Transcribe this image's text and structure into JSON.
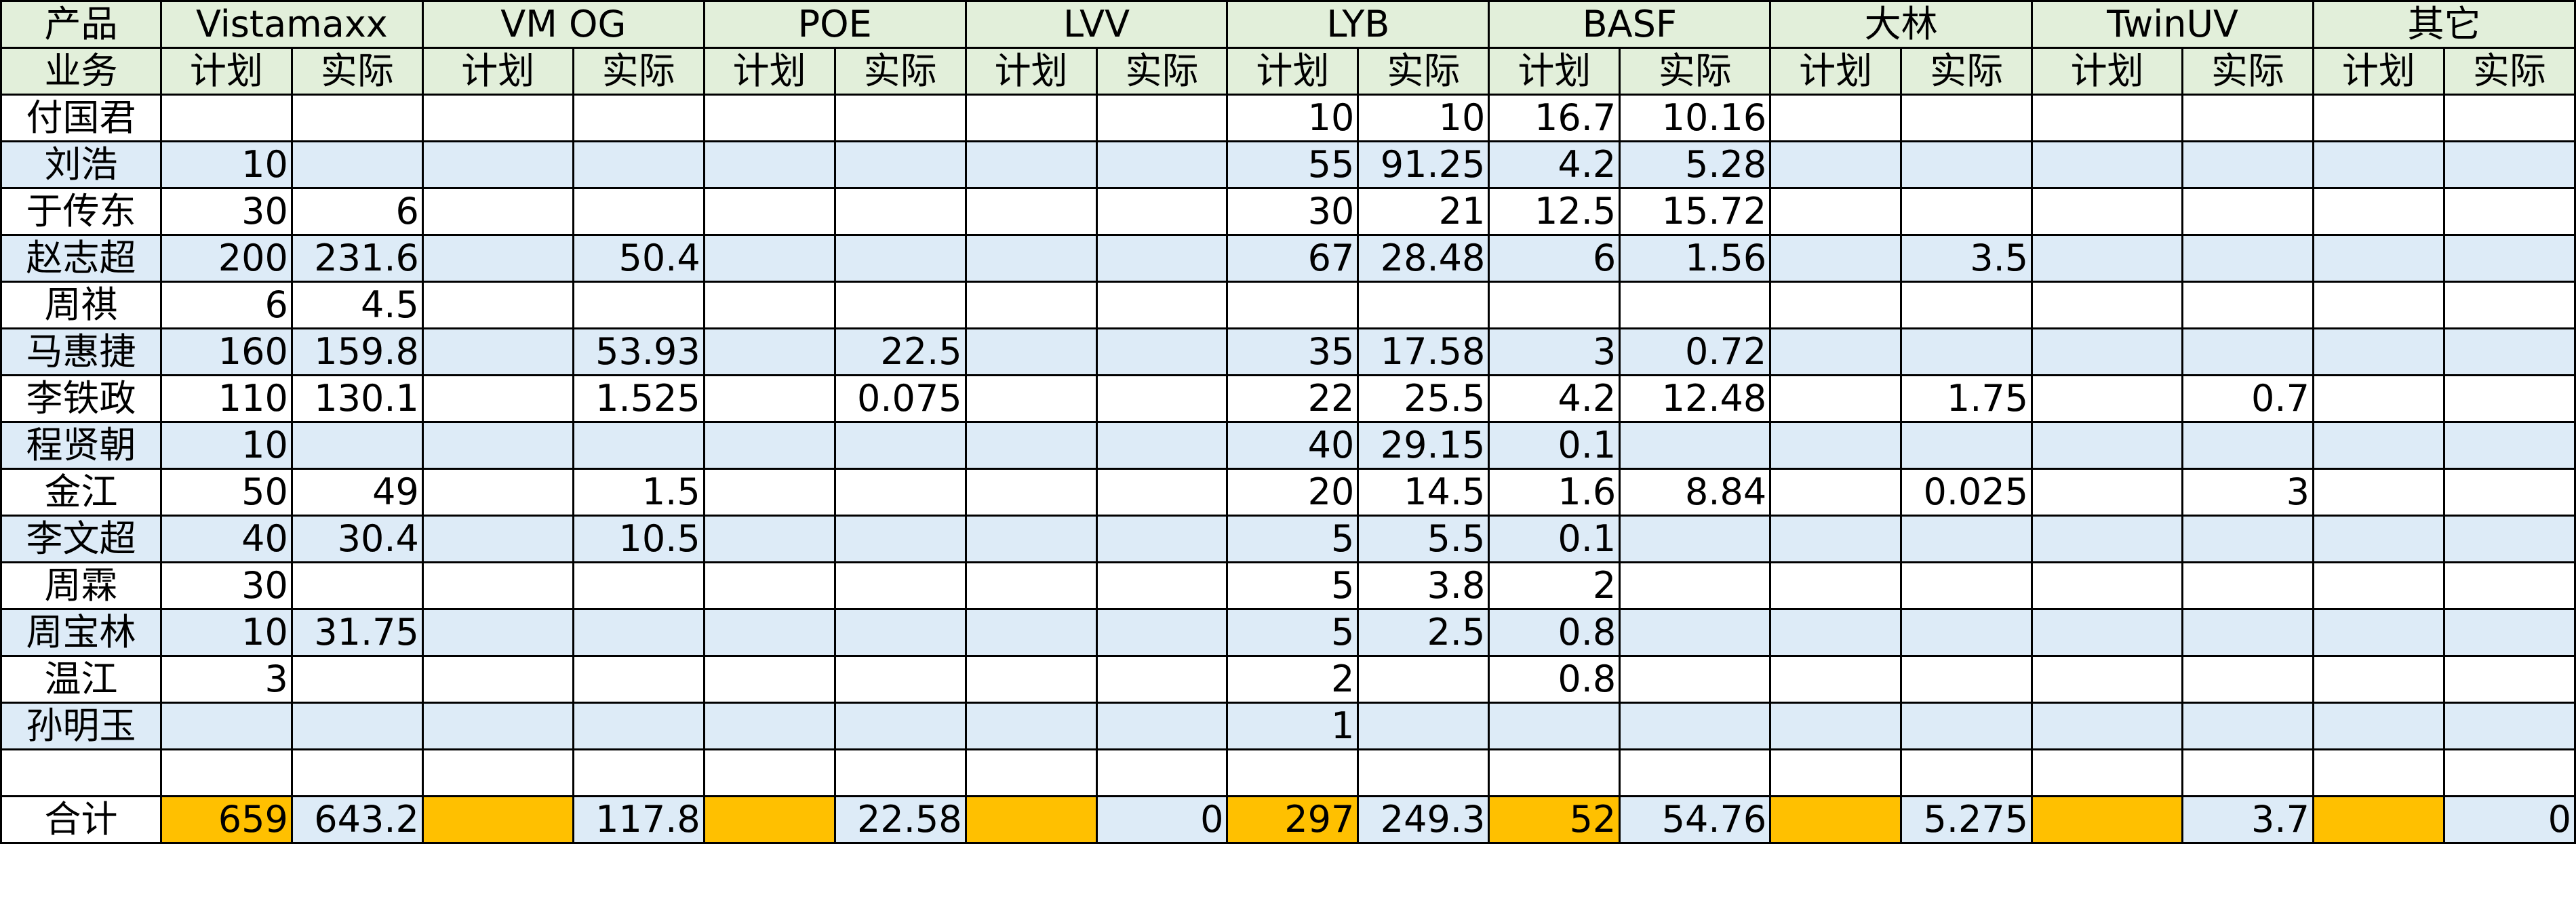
{
  "header": {
    "row1_label": "产品",
    "row2_label": "业务",
    "products": [
      "Vistamaxx",
      "VM OG",
      "POE",
      "LVV",
      "LYB",
      "BASF",
      "大林",
      "TwinUV",
      "其它"
    ],
    "plan_label": "计划",
    "actual_label": "实际"
  },
  "rows": [
    {
      "name": "付国君",
      "cells": [
        "",
        "",
        "",
        "",
        "",
        "",
        "",
        "",
        "10",
        "10",
        "16.7",
        "10.16",
        "",
        "",
        "",
        "",
        "",
        ""
      ],
      "red": []
    },
    {
      "name": "刘浩",
      "cells": [
        "10",
        "",
        "",
        "",
        "",
        "",
        "",
        "",
        "55",
        "91.25",
        "4.2",
        "5.28",
        "",
        "",
        "",
        "",
        "",
        ""
      ],
      "red": [
        9
      ]
    },
    {
      "name": "于传东",
      "cells": [
        "30",
        "6",
        "",
        "",
        "",
        "",
        "",
        "",
        "30",
        "21",
        "12.5",
        "15.72",
        "",
        "",
        "",
        "",
        "",
        ""
      ],
      "red": [
        11
      ]
    },
    {
      "name": "赵志超",
      "cells": [
        "200",
        "231.6",
        "",
        "50.4",
        "",
        "",
        "",
        "",
        "67",
        "28.48",
        "6",
        "1.56",
        "",
        "3.5",
        "",
        "",
        "",
        ""
      ],
      "red": [
        1
      ]
    },
    {
      "name": "周祺",
      "cells": [
        "6",
        "4.5",
        "",
        "",
        "",
        "",
        "",
        "",
        "",
        "",
        "",
        "",
        "",
        "",
        "",
        "",
        "",
        ""
      ],
      "red": []
    },
    {
      "name": "马惠捷",
      "cells": [
        "160",
        "159.8",
        "",
        "53.93",
        "",
        "22.5",
        "",
        "",
        "35",
        "17.58",
        "3",
        "0.72",
        "",
        "",
        "",
        "",
        "",
        ""
      ],
      "red": [
        5
      ]
    },
    {
      "name": "李铁政",
      "cells": [
        "110",
        "130.1",
        "",
        "1.525",
        "",
        "0.075",
        "",
        "",
        "22",
        "25.5",
        "4.2",
        "12.48",
        "",
        "1.75",
        "",
        "0.7",
        "",
        ""
      ],
      "red": [
        1,
        9,
        11,
        15
      ]
    },
    {
      "name": "程贤朝",
      "cells": [
        "10",
        "",
        "",
        "",
        "",
        "",
        "",
        "",
        "40",
        "29.15",
        "0.1",
        "",
        "",
        "",
        "",
        "",
        "",
        ""
      ],
      "red": []
    },
    {
      "name": "金江",
      "cells": [
        "50",
        "49",
        "",
        "1.5",
        "",
        "",
        "",
        "",
        "20",
        "14.5",
        "1.6",
        "8.84",
        "",
        "0.025",
        "",
        "3",
        "",
        ""
      ],
      "red": [
        11,
        15
      ]
    },
    {
      "name": "李文超",
      "cells": [
        "40",
        "30.4",
        "",
        "10.5",
        "",
        "",
        "",
        "",
        "5",
        "5.5",
        "0.1",
        "",
        "",
        "",
        "",
        "",
        "",
        ""
      ],
      "red": [
        9
      ]
    },
    {
      "name": "周霖",
      "cells": [
        "30",
        "",
        "",
        "",
        "",
        "",
        "",
        "",
        "5",
        "3.8",
        "2",
        "",
        "",
        "",
        "",
        "",
        "",
        ""
      ],
      "red": []
    },
    {
      "name": "周宝林",
      "cells": [
        "10",
        "31.75",
        "",
        "",
        "",
        "",
        "",
        "",
        "5",
        "2.5",
        "0.8",
        "",
        "",
        "",
        "",
        "",
        "",
        ""
      ],
      "red": [
        1
      ]
    },
    {
      "name": "温江",
      "cells": [
        "3",
        "",
        "",
        "",
        "",
        "",
        "",
        "",
        "2",
        "",
        "0.8",
        "",
        "",
        "",
        "",
        "",
        "",
        ""
      ],
      "red": []
    },
    {
      "name": "孙明玉",
      "cells": [
        "",
        "",
        "",
        "",
        "",
        "",
        "",
        "",
        "1",
        "",
        "",
        "",
        "",
        "",
        "",
        "",
        "",
        ""
      ],
      "red": []
    },
    {
      "name": "",
      "cells": [
        "",
        "",
        "",
        "",
        "",
        "",
        "",
        "",
        "",
        "",
        "",
        "",
        "",
        "",
        "",
        "",
        "",
        ""
      ],
      "red": []
    }
  ],
  "total": {
    "name": "合计",
    "cells": [
      "659",
      "643.2",
      "",
      "117.8",
      "",
      "22.58",
      "",
      "0",
      "297",
      "249.3",
      "52",
      "54.76",
      "",
      "5.275",
      "",
      "3.7",
      "",
      "0"
    ]
  },
  "colors": {
    "header_bg": "#e2efda",
    "band_bg": "#ddebf7",
    "total_plan_bg": "#ffc000",
    "over_plan_text": "#ff0000"
  }
}
